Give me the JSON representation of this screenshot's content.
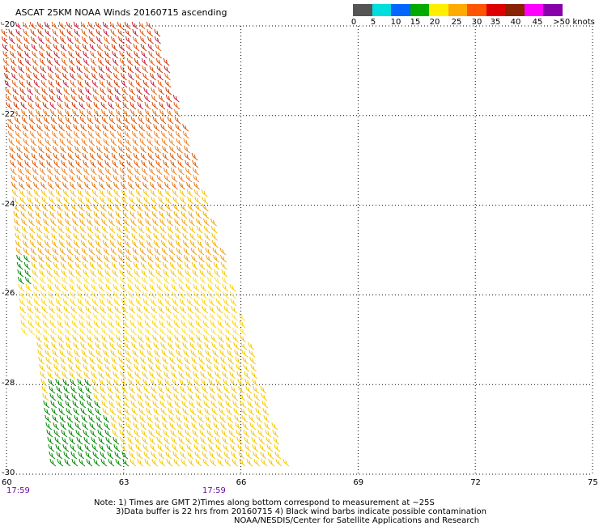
{
  "title": "ASCAT 25KM NOAA Winds 20160715 ascending",
  "legend": {
    "colors": [
      "#555555",
      "#00dddd",
      "#0066ff",
      "#00aa00",
      "#ffee00",
      "#ffaa00",
      "#ff5500",
      "#dd0000",
      "#882200",
      "#ff00ff",
      "#8800aa"
    ],
    "ticks": [
      "0",
      "5",
      "10",
      "15",
      "20",
      "25",
      "30",
      "35",
      "40",
      "45",
      ">50 knots"
    ]
  },
  "map": {
    "lat_labels": [
      "-20",
      "-22",
      "-24",
      "-26",
      "-28",
      "-30"
    ],
    "lon_labels": [
      "60",
      "63",
      "66",
      "69",
      "72",
      "75"
    ],
    "times": [
      "17:59",
      "17:59"
    ],
    "grid": true
  },
  "notes": {
    "line1": "Note: 1) Times are GMT 2)Times along bottom correspond to measurement at ~25S",
    "line2": "3)Data buffer is 22 hrs from 20160715 4) Black wind barbs indicate possible contamination",
    "line3": "NOAA/NESDIS/Center for Satellite Applications and Research"
  }
}
